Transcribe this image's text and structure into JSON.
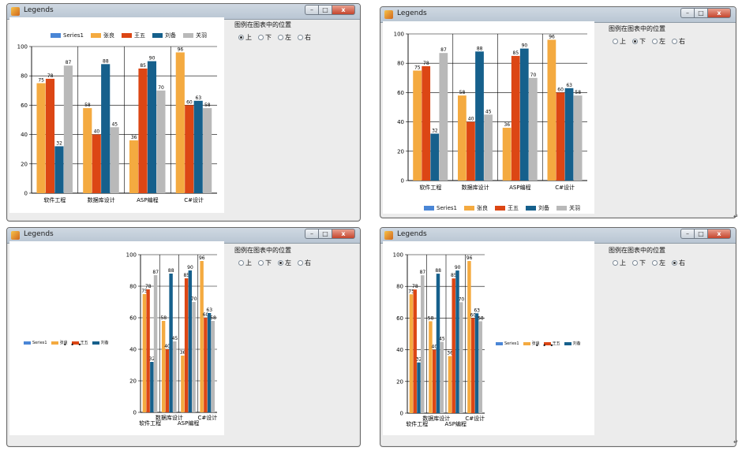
{
  "window_title": "Legends",
  "window_buttons": {
    "min": "–",
    "max": "□",
    "close": "x"
  },
  "options": {
    "title": "图例在图表中的位置",
    "choices": [
      "上",
      "下",
      "左",
      "右"
    ]
  },
  "selected": [
    "上",
    "下",
    "左",
    "右"
  ],
  "legend_more": "• • •",
  "return_mark": "↵",
  "colors": {
    "Series1": "#4a86d6",
    "张良": "#f4aa40",
    "王五": "#dc4614",
    "刘备": "#16608c",
    "关羽": "#b9b9b9"
  },
  "chart_data": {
    "type": "bar",
    "categories": [
      "软件工程",
      "数据库设计",
      "ASP编程",
      "C#设计"
    ],
    "ylim": [
      0,
      100
    ],
    "yticks": [
      0,
      20,
      40,
      60,
      80,
      100
    ],
    "series": [
      {
        "name": "Series1",
        "values": [
          null,
          null,
          null,
          null
        ]
      },
      {
        "name": "张良",
        "values": [
          75,
          58,
          36,
          96
        ]
      },
      {
        "name": "王五",
        "values": [
          78,
          40,
          85,
          60
        ]
      },
      {
        "name": "刘备",
        "values": [
          32,
          88,
          90,
          63
        ]
      },
      {
        "name": "关羽",
        "values": [
          87,
          45,
          70,
          58
        ]
      }
    ]
  }
}
